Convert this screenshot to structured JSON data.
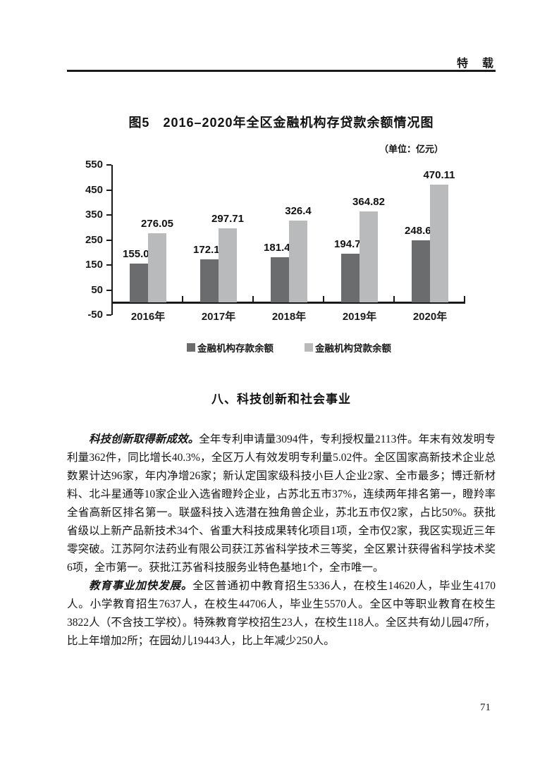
{
  "header": {
    "label": "特　载"
  },
  "figure": {
    "title": "图5　2016–2020年全区金融机构存贷款余额情况图",
    "unit_note": "（单位：亿元）"
  },
  "chart_data": {
    "type": "bar",
    "title": "图5　2016–2020年全区金融机构存贷款余额情况图",
    "unit": "亿元",
    "categories": [
      "2016年",
      "2017年",
      "2018年",
      "2019年",
      "2020年"
    ],
    "series": [
      {
        "name": "金融机构存款余额",
        "color": "#6b6c6e",
        "values": [
          155.03,
          172.16,
          181.46,
          194.72,
          248.64
        ]
      },
      {
        "name": "金融机构贷款余额",
        "color": "#b9babc",
        "values": [
          276.05,
          297.71,
          326.4,
          364.82,
          470.11
        ]
      }
    ],
    "xlabel": "",
    "ylabel": "",
    "ylim": [
      -50,
      550
    ],
    "yticks": [
      550,
      450,
      350,
      250,
      150,
      50,
      -50
    ],
    "grid": false,
    "legend_position": "bottom",
    "value_labels": true,
    "axis_color": "#1a1a1a",
    "text_color": "#1a1a1a"
  },
  "section": {
    "heading": "八、科技创新和社会事业",
    "paragraphs": [
      {
        "lead": "科技创新取得新成效。",
        "body": "全年专利申请量3094件，专利授权量2113件。年末有效发明专利量362件，同比增长40.3%，全区万人有效发明专利量5.02件。全区国家高新技术企业总数累计达96家，年内净增26家；新认定国家级科技小巨人企业2家、全市最多；博迁新材料、北斗星通等10家企业入选省瞪羚企业，占苏北五市37%，连续两年排名第一，瞪羚率全省高新区排名第一。联盛科技入选潜在独角兽企业，苏北五市仅2家，占比50%。获批省级以上新产品新技术34个、省重大科技成果转化项目1项，全市仅2家，我区实现近三年零突破。江苏阿尔法药业有限公司获江苏省科学技术三等奖，全区累计获得省科学技术奖6项，全市第一。获批江苏省科技服务业特色基地1个，全市唯一。"
      },
      {
        "lead": "教育事业加快发展。",
        "body": "全区普通初中教育招生5336人，在校生14620人，毕业生4170人。小学教育招生7637人，在校生44706人，毕业生5570人。全区中等职业教育在校生3822人（不含技工学校）。特殊教育学校招生23人，在校生118人。全区共有幼儿园47所，比上年增加2所；在园幼儿19443人，比上年减少250人。"
      }
    ]
  },
  "page_number": "71"
}
